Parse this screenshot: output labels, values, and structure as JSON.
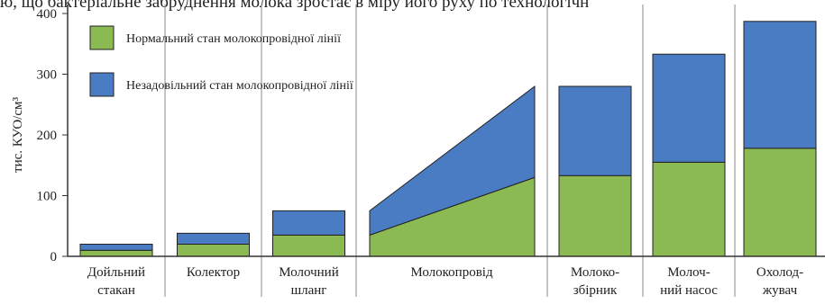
{
  "top_text": "ю, що бактеріальне забруднення молока зростає в міру його руху по технологічн",
  "chart_data": {
    "type": "stacked-bar-ramp",
    "y_label": "тис. КУО/см³",
    "categories": [
      [
        "Дойльний",
        "стакан"
      ],
      [
        "Колектор"
      ],
      [
        "Молочний",
        "шланг"
      ],
      [
        "Молокопровід"
      ],
      [
        "Молоко-",
        "збірник"
      ],
      [
        "Молоч-",
        "ний насос"
      ],
      [
        "Охолод-",
        "жувач"
      ]
    ],
    "series": [
      {
        "name": "Нормальний стан молокопровідної лінії",
        "color": "#8cba52",
        "values": [
          10,
          20,
          35,
          [
            35,
            130
          ],
          133,
          155,
          178
        ]
      },
      {
        "name": "Незадовільний стан молокопровідної лінії",
        "color": "#4a7cc4",
        "values": [
          10,
          18,
          40,
          [
            40,
            150
          ],
          147,
          178,
          209
        ]
      }
    ],
    "ylim": [
      0,
      400
    ],
    "yticks": [
      0,
      100,
      200,
      300,
      400
    ],
    "separators": true,
    "legend": "upper left"
  }
}
